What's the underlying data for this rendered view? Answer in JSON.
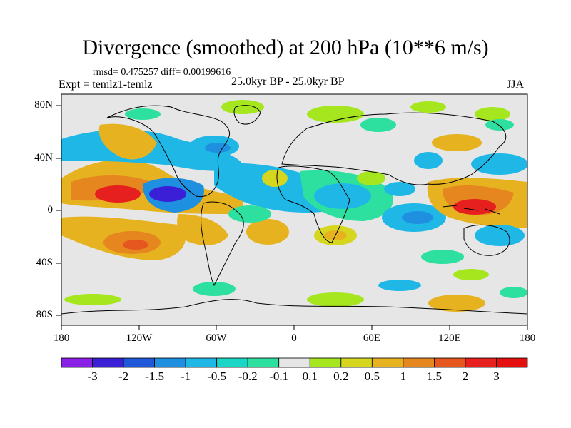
{
  "title": "Divergence (smoothed) at 200 hPa (10**6 m/s)",
  "stats": "rmsd= 0.475257 diff= 0.00199616",
  "expt": "Expt = temlz1-temlz",
  "period": "25.0kyr BP - 25.0kyr BP",
  "season": "JJA",
  "lat_labels": [
    "80N",
    "40N",
    "0",
    "40S",
    "80S"
  ],
  "lon_labels": [
    "180",
    "120W",
    "60W",
    "0",
    "60E",
    "120E",
    "180"
  ],
  "colorbar": {
    "labels": [
      "-3",
      "-2",
      "-1.5",
      "-1",
      "-0.5",
      "-0.2",
      "-0.1",
      "0.1",
      "0.2",
      "0.5",
      "1",
      "1.5",
      "2",
      "3"
    ],
    "colors": [
      "#8a1fe6",
      "#3a1fd6",
      "#1f58d8",
      "#1f8fe0",
      "#1fb8e6",
      "#1ad6c4",
      "#2ee0a0",
      "#e6e6e6",
      "#a6e61f",
      "#d6d61f",
      "#e6b21f",
      "#e6861f",
      "#e6561f",
      "#e61f1f",
      "#e60f0f"
    ]
  },
  "map_colors": {
    "ocean_bg": "#e6e6e6",
    "pos_light": "#a6e61f",
    "pos_mid": "#e6b21f",
    "pos_strong": "#e6861f",
    "pos_peak": "#e61f1f",
    "neg_light": "#2ee0a0",
    "neg_mid": "#1fb8e6",
    "neg_strong": "#1f8fe0",
    "neg_peak": "#3a1fd6"
  }
}
